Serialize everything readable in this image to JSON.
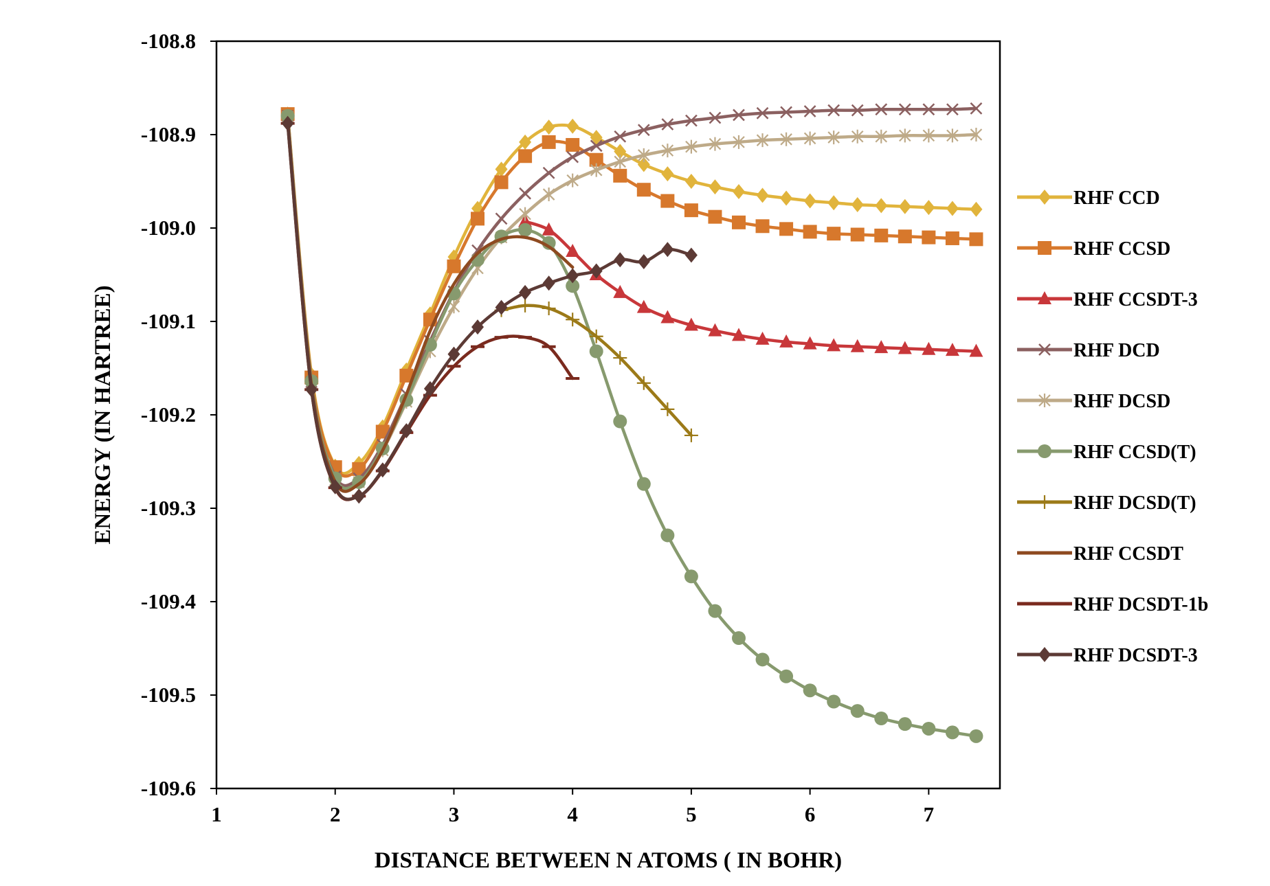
{
  "chart_data": {
    "type": "line",
    "title": "",
    "xlabel": "DISTANCE BETWEEN N ATOMS ( IN BOHR)",
    "ylabel": "ENERGY (IN HARTREE)",
    "xlim": [
      1,
      7.6
    ],
    "ylim": [
      -109.6,
      -108.8
    ],
    "x_ticks": [
      1,
      2,
      3,
      4,
      5,
      6,
      7
    ],
    "y_ticks": [
      -108.8,
      -108.9,
      -109.0,
      -109.1,
      -109.2,
      -109.3,
      -109.4,
      -109.5,
      -109.6
    ],
    "y_tick_labels": [
      "-108.8",
      "-108.9",
      "-109.0",
      "-109.1",
      "-109.2",
      "-109.3",
      "-109.4",
      "-109.5",
      "-109.6"
    ],
    "x_tick_labels": [
      "1",
      "2",
      "3",
      "4",
      "5",
      "6",
      "7"
    ],
    "grid": false,
    "legend_position": "right",
    "series": [
      {
        "name": "RHF CCD",
        "color": "#E1B43C",
        "marker": "diamond",
        "x": [
          1.6,
          1.8,
          2.0,
          2.2,
          2.4,
          2.6,
          2.8,
          3.0,
          3.2,
          3.4,
          3.6,
          3.8,
          4.0,
          4.2,
          4.4,
          4.6,
          4.8,
          5.0,
          5.2,
          5.4,
          5.6,
          5.8,
          6.0,
          6.2,
          6.4,
          6.6,
          6.8,
          7.0,
          7.2,
          7.4
        ],
        "y": [
          -108.878,
          -109.157,
          -109.255,
          -109.252,
          -109.213,
          -109.152,
          -109.092,
          -109.031,
          -108.979,
          -108.937,
          -108.908,
          -108.892,
          -108.891,
          -108.903,
          -108.918,
          -108.932,
          -108.942,
          -108.95,
          -108.956,
          -108.961,
          -108.965,
          -108.968,
          -108.971,
          -108.973,
          -108.975,
          -108.976,
          -108.977,
          -108.978,
          -108.979,
          -108.98
        ]
      },
      {
        "name": "RHF CCSD",
        "color": "#D7782C",
        "marker": "square",
        "x": [
          1.6,
          1.8,
          2.0,
          2.2,
          2.4,
          2.6,
          2.8,
          3.0,
          3.2,
          3.4,
          3.6,
          3.8,
          4.0,
          4.2,
          4.4,
          4.6,
          4.8,
          5.0,
          5.2,
          5.4,
          5.6,
          5.8,
          6.0,
          6.2,
          6.4,
          6.6,
          6.8,
          7.0,
          7.2,
          7.4
        ],
        "y": [
          -108.878,
          -109.16,
          -109.256,
          -109.258,
          -109.218,
          -109.158,
          -109.098,
          -109.041,
          -108.99,
          -108.951,
          -108.923,
          -108.908,
          -108.911,
          -108.927,
          -108.944,
          -108.959,
          -108.971,
          -108.981,
          -108.988,
          -108.994,
          -108.998,
          -109.001,
          -109.004,
          -109.006,
          -109.007,
          -109.008,
          -109.009,
          -109.01,
          -109.011,
          -109.012
        ]
      },
      {
        "name": "RHF CCSDT-3",
        "color": "#C8373A",
        "marker": "triangle",
        "x": [
          3.6,
          3.8,
          4.0,
          4.2,
          4.4,
          4.6,
          4.8,
          5.0,
          5.2,
          5.4,
          5.6,
          5.8,
          6.0,
          6.2,
          6.4,
          6.6,
          6.8,
          7.0,
          7.2,
          7.4
        ],
        "y": [
          -108.993,
          -109.002,
          -109.025,
          -109.05,
          -109.069,
          -109.085,
          -109.096,
          -109.104,
          -109.11,
          -109.115,
          -109.119,
          -109.122,
          -109.124,
          -109.126,
          -109.127,
          -109.128,
          -109.129,
          -109.13,
          -109.131,
          -109.132
        ]
      },
      {
        "name": "RHF DCD",
        "color": "#8B6060",
        "marker": "x",
        "x": [
          1.6,
          1.8,
          2.0,
          2.2,
          2.4,
          2.6,
          2.8,
          3.0,
          3.2,
          3.4,
          3.6,
          3.8,
          4.0,
          4.2,
          4.4,
          4.6,
          4.8,
          5.0,
          5.2,
          5.4,
          5.6,
          5.8,
          6.0,
          6.2,
          6.4,
          6.6,
          6.8,
          7.0,
          7.2,
          7.4
        ],
        "y": [
          -108.88,
          -109.165,
          -109.266,
          -109.268,
          -109.232,
          -109.178,
          -109.121,
          -109.068,
          -109.024,
          -108.99,
          -108.963,
          -108.941,
          -108.924,
          -108.912,
          -108.902,
          -108.895,
          -108.889,
          -108.885,
          -108.882,
          -108.879,
          -108.877,
          -108.876,
          -108.875,
          -108.874,
          -108.874,
          -108.873,
          -108.873,
          -108.873,
          -108.873,
          -108.872
        ]
      },
      {
        "name": "RHF DCSD",
        "color": "#BEAA88",
        "marker": "star",
        "x": [
          1.6,
          1.8,
          2.0,
          2.2,
          2.4,
          2.6,
          2.8,
          3.0,
          3.2,
          3.4,
          3.6,
          3.8,
          4.0,
          4.2,
          4.4,
          4.6,
          4.8,
          5.0,
          5.2,
          5.4,
          5.6,
          5.8,
          6.0,
          6.2,
          6.4,
          6.6,
          6.8,
          7.0,
          7.2,
          7.4
        ],
        "y": [
          -108.881,
          -109.167,
          -109.27,
          -109.272,
          -109.238,
          -109.186,
          -109.132,
          -109.084,
          -109.043,
          -109.01,
          -108.985,
          -108.964,
          -108.949,
          -108.938,
          -108.929,
          -108.922,
          -108.917,
          -108.913,
          -108.91,
          -108.908,
          -108.906,
          -108.905,
          -108.904,
          -108.903,
          -108.902,
          -108.902,
          -108.901,
          -108.901,
          -108.901,
          -108.9
        ]
      },
      {
        "name": "RHF CCSD(T)",
        "color": "#879A6E",
        "marker": "circle",
        "x": [
          1.6,
          1.8,
          2.0,
          2.2,
          2.4,
          2.6,
          2.8,
          3.0,
          3.2,
          3.4,
          3.6,
          3.8,
          4.0,
          4.2,
          4.4,
          4.6,
          4.8,
          5.0,
          5.2,
          5.4,
          5.6,
          5.8,
          6.0,
          6.2,
          6.4,
          6.6,
          6.8,
          7.0,
          7.2,
          7.4
        ],
        "y": [
          -108.88,
          -109.164,
          -109.268,
          -109.272,
          -109.236,
          -109.184,
          -109.125,
          -109.07,
          -109.034,
          -109.009,
          -109.002,
          -109.016,
          -109.062,
          -109.132,
          -109.207,
          -109.274,
          -109.329,
          -109.373,
          -109.41,
          -109.439,
          -109.462,
          -109.48,
          -109.495,
          -109.507,
          -109.517,
          -109.525,
          -109.531,
          -109.536,
          -109.54,
          -109.544
        ]
      },
      {
        "name": "RHF DCSD(T)",
        "color": "#9C7A18",
        "marker": "plus",
        "x": [
          3.4,
          3.6,
          3.8,
          4.0,
          4.2,
          4.4,
          4.6,
          4.8,
          5.0
        ],
        "y": [
          -109.088,
          -109.083,
          -109.086,
          -109.098,
          -109.116,
          -109.139,
          -109.166,
          -109.194,
          -109.222
        ]
      },
      {
        "name": "RHF CCSDT",
        "color": "#8E4A20",
        "marker": "none",
        "x": [
          1.6,
          1.8,
          2.0,
          2.2,
          2.4,
          2.6,
          2.8,
          3.0,
          3.2,
          3.4,
          3.6,
          3.8,
          4.0
        ],
        "y": [
          -108.884,
          -109.168,
          -109.272,
          -109.274,
          -109.238,
          -109.178,
          -109.11,
          -109.06,
          -109.027,
          -109.012,
          -109.01,
          -109.02,
          -109.042
        ]
      },
      {
        "name": "RHF DCSDT-1b",
        "color": "#7A2A1E",
        "marker": "dash",
        "x": [
          1.6,
          1.8,
          2.0,
          2.2,
          2.4,
          2.6,
          2.8,
          3.0,
          3.2,
          3.4,
          3.6,
          3.8,
          4.0
        ],
        "y": [
          -108.888,
          -109.173,
          -109.278,
          -109.287,
          -109.26,
          -109.219,
          -109.179,
          -109.148,
          -109.127,
          -109.117,
          -109.117,
          -109.127,
          -109.161
        ]
      },
      {
        "name": "RHF DCSDT-3",
        "color": "#5C3A35",
        "marker": "diamond",
        "x": [
          1.6,
          1.8,
          2.0,
          2.2,
          2.4,
          2.6,
          2.8,
          3.0,
          3.2,
          3.4,
          3.6,
          3.8,
          4.0,
          4.2,
          4.4,
          4.6,
          4.8,
          5.0
        ],
        "y": [
          -108.888,
          -109.173,
          -109.277,
          -109.287,
          -109.259,
          -109.217,
          -109.172,
          -109.135,
          -109.106,
          -109.085,
          -109.069,
          -109.059,
          -109.051,
          -109.046,
          -109.034,
          -109.036,
          -109.023,
          -109.029
        ]
      }
    ]
  }
}
